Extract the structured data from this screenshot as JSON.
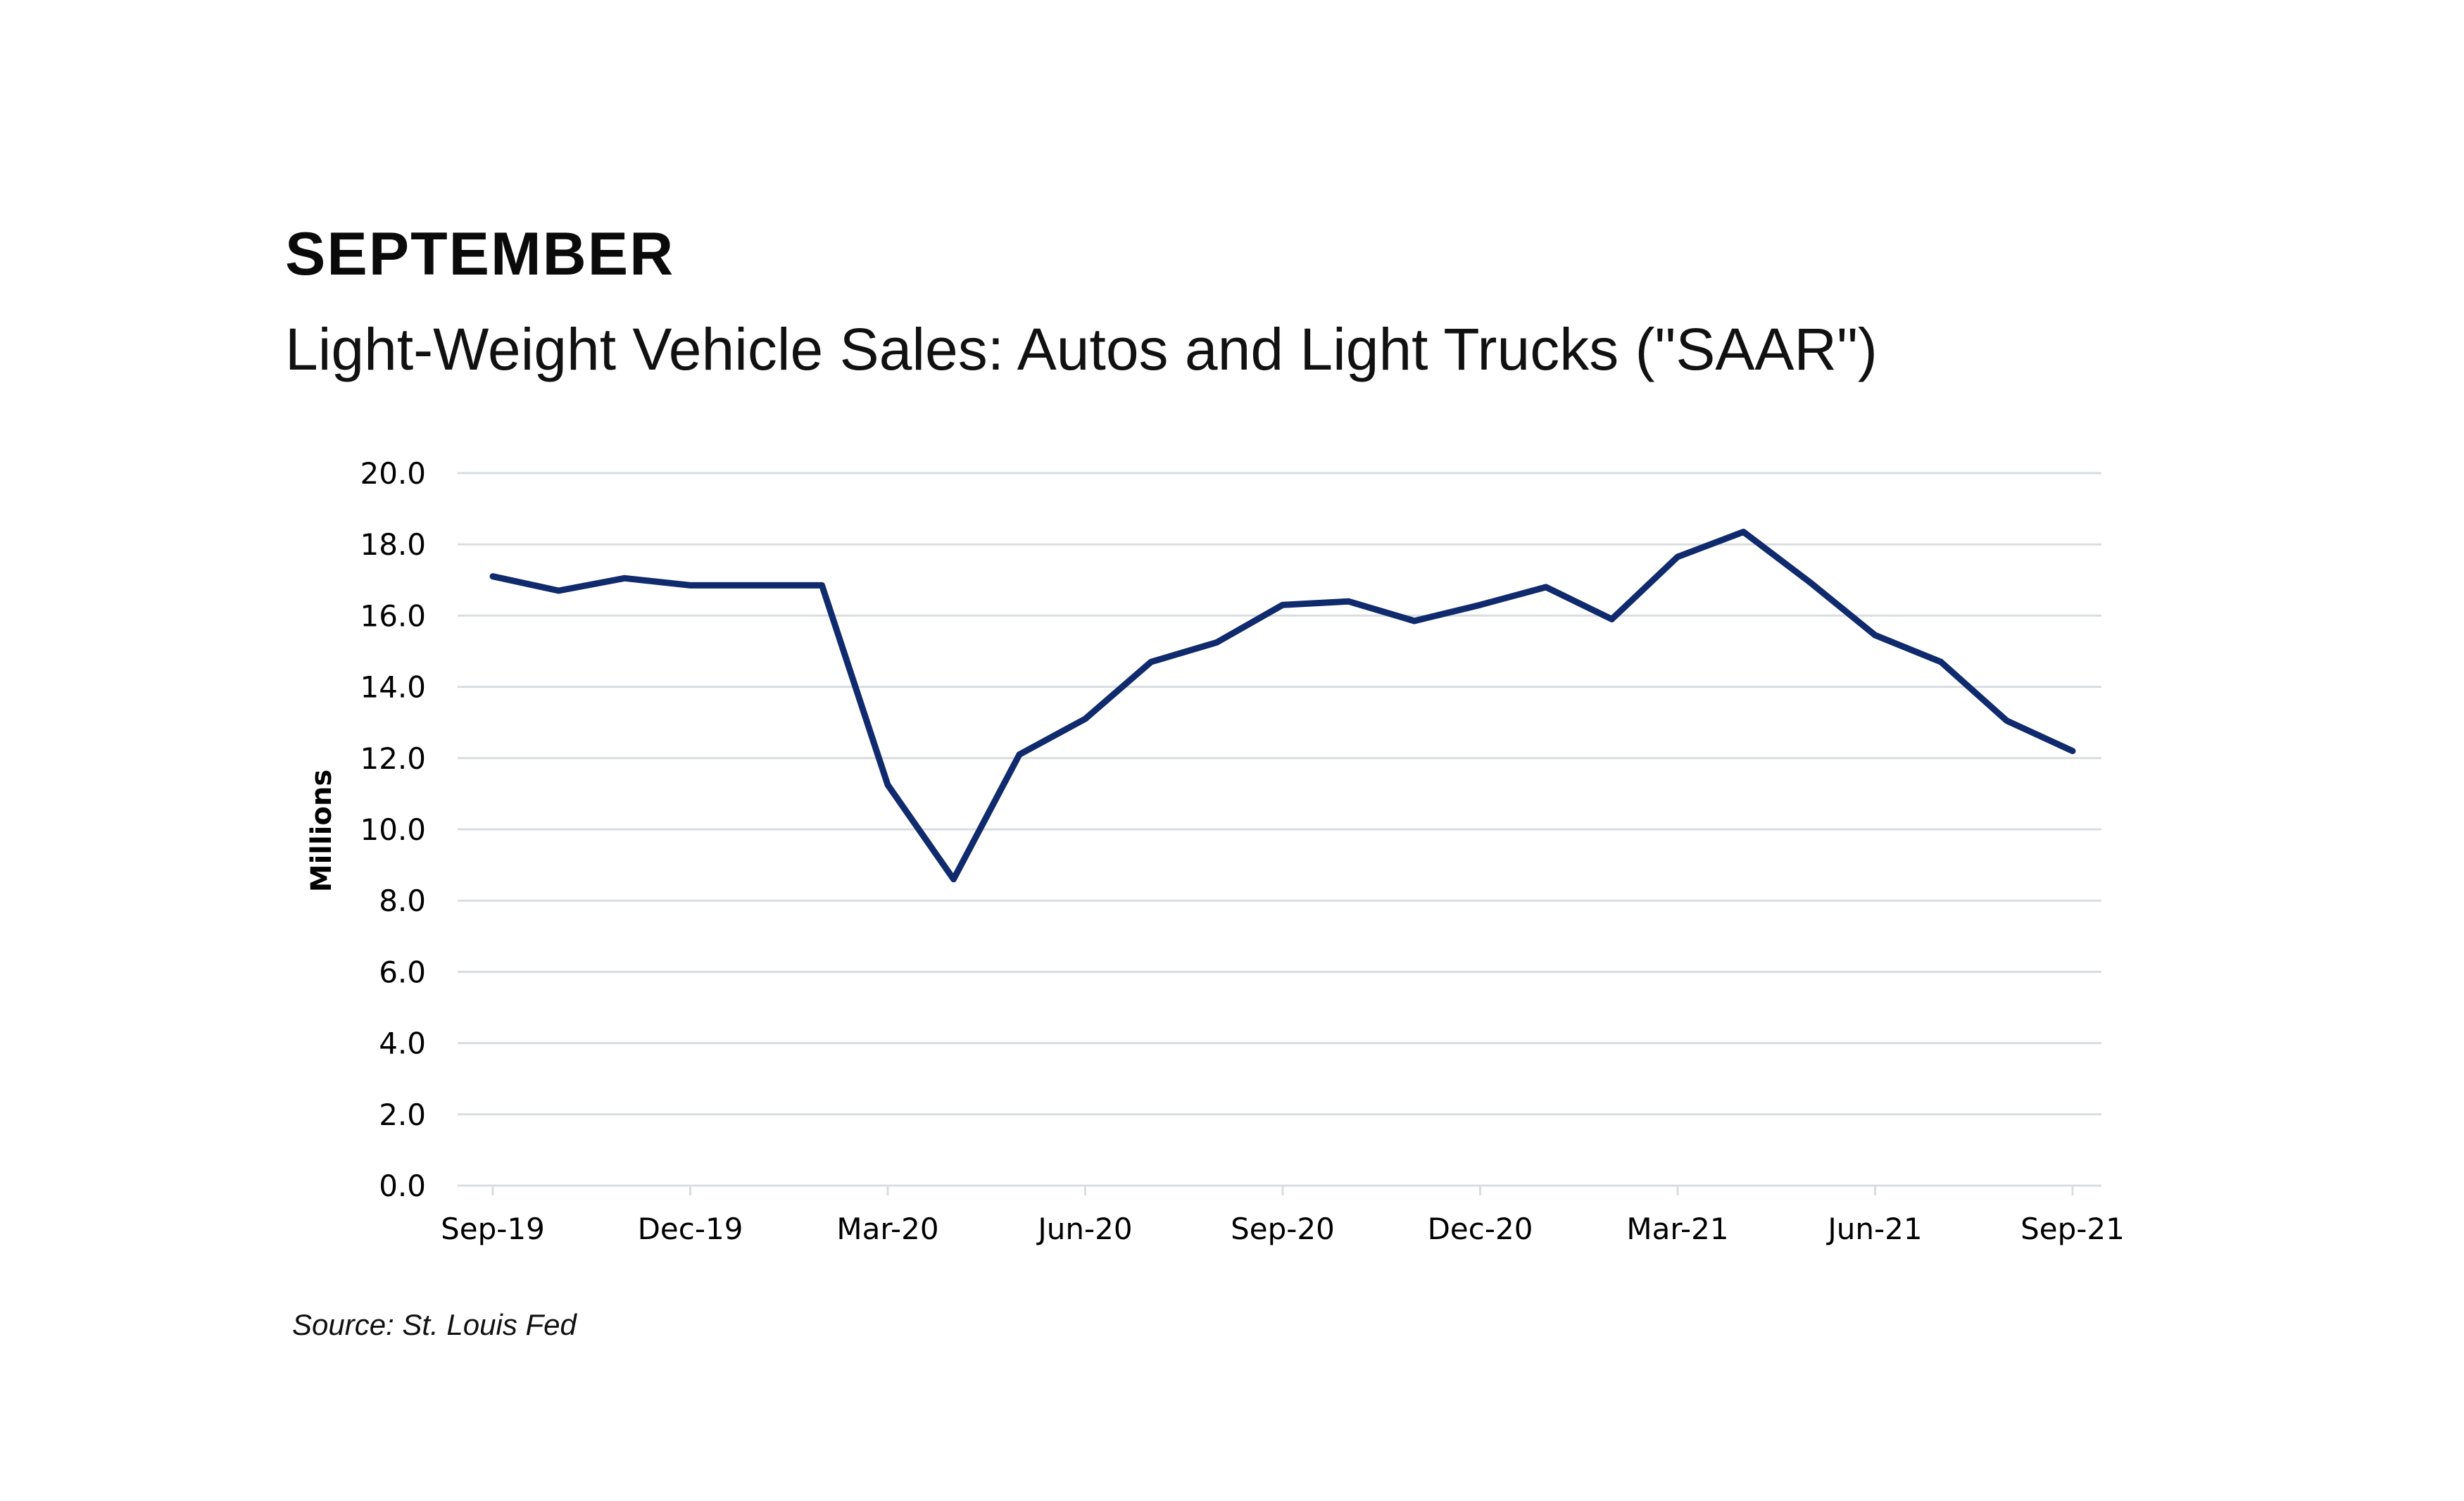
{
  "header": {
    "heading": "SEPTEMBER",
    "subtitle": "Light-Weight Vehicle Sales: Autos and Light Trucks (\"SAAR\")"
  },
  "footer": {
    "source": "Source: St. Louis Fed"
  },
  "colors": {
    "line": "#102a6e",
    "grid": "#d9dde0"
  },
  "chart_data": {
    "type": "line",
    "title": "Light-Weight Vehicle Sales: Autos and Light Trucks (\"SAAR\")",
    "xlabel": "",
    "ylabel": "Millions",
    "ylim": [
      0,
      20
    ],
    "grid": true,
    "yticks": [
      "0.0",
      "2.0",
      "4.0",
      "6.0",
      "8.0",
      "10.0",
      "12.0",
      "14.0",
      "16.0",
      "18.0",
      "20.0"
    ],
    "xtick_labels": [
      "Sep-19",
      "Dec-19",
      "Mar-20",
      "Jun-20",
      "Sep-20",
      "Dec-20",
      "Mar-21",
      "Jun-21",
      "Sep-21"
    ],
    "x": [
      "Sep-19",
      "Oct-19",
      "Nov-19",
      "Dec-19",
      "Jan-20",
      "Feb-20",
      "Mar-20",
      "Apr-20",
      "May-20",
      "Jun-20",
      "Jul-20",
      "Aug-20",
      "Sep-20",
      "Oct-20",
      "Nov-20",
      "Dec-20",
      "Jan-21",
      "Feb-21",
      "Mar-21",
      "Apr-21",
      "May-21",
      "Jun-21",
      "Jul-21",
      "Aug-21",
      "Sep-21"
    ],
    "series": [
      {
        "values": [
          17.1,
          16.7,
          17.05,
          16.85,
          16.85,
          16.85,
          11.25,
          8.6,
          12.1,
          13.1,
          14.7,
          15.25,
          16.3,
          16.4,
          15.85,
          16.3,
          16.8,
          15.9,
          17.65,
          18.35,
          16.95,
          15.45,
          14.7,
          13.05,
          12.2
        ]
      }
    ]
  }
}
